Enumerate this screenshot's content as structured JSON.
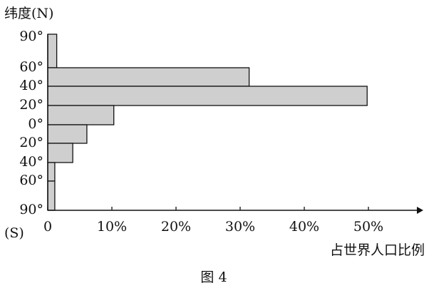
{
  "chart_data": {
    "type": "bar",
    "orientation": "horizontal",
    "y_axis_title": "纬度(N)",
    "y_axis_title_bottom": "(S)",
    "x_axis_title": "占世界人口比例",
    "caption": "图 4",
    "y_labels": [
      "90°",
      "60°",
      "40°",
      "20°",
      "0°",
      "20°",
      "40°",
      "60°",
      "90°"
    ],
    "values": [
      1.4,
      31.4,
      49.8,
      10.3,
      6.1,
      3.9,
      1.1,
      1.1
    ],
    "color": "#cfcfcf",
    "xlim": [
      0,
      57
    ],
    "xticks": [
      0,
      {
        "value": 10,
        "label": "10%"
      },
      {
        "value": 20,
        "label": "20%"
      },
      {
        "value": 30,
        "label": "30%"
      },
      {
        "value": 40,
        "label": "40%"
      },
      {
        "value": 50,
        "label": "50%"
      }
    ]
  }
}
